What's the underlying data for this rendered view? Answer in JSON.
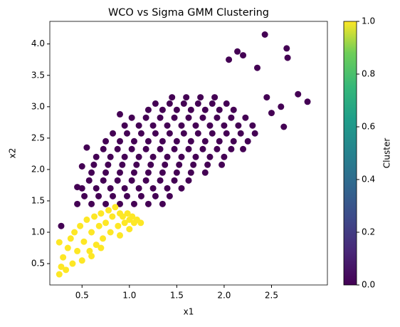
{
  "chart_data": {
    "type": "scatter",
    "title": "WCO vs Sigma GMM Clustering",
    "x_label": "x1",
    "y_label": "x2",
    "xlim": [
      0.16,
      3.09
    ],
    "ylim": [
      0.16,
      4.36
    ],
    "xticks": [
      0.5,
      {
        "value": 1.0,
        "label": "1.0"
      },
      1.5,
      {
        "value": 2.0,
        "label": "2.0"
      },
      2.5
    ],
    "yticks": [
      0.5,
      {
        "value": 1.0,
        "label": "1.0"
      },
      1.5,
      {
        "value": 2.0,
        "label": "2.0"
      },
      2.5,
      {
        "value": 3.0,
        "label": "3.0"
      },
      3.5,
      {
        "value": 4.0,
        "label": "4.0"
      }
    ],
    "colorbar": {
      "label": "Cluster",
      "lim": [
        0,
        1
      ],
      "ticks": [
        {
          "value": 0,
          "label": "0.0"
        },
        0.2,
        0.4,
        0.6,
        0.8,
        {
          "value": 1,
          "label": "1.0"
        }
      ]
    },
    "series": [
      {
        "color": "#440154",
        "x": [
          2.43,
          2.66,
          2.67,
          2.2,
          2.14,
          2.05,
          2.35,
          2.78,
          2.88,
          2.6,
          2.63,
          2.45,
          2.5,
          0.28,
          0.9,
          0.45,
          0.5,
          0.55,
          0.45,
          0.6,
          0.75,
          0.9,
          1.05,
          1.2,
          1.35,
          0.525,
          0.675,
          0.825,
          0.975,
          1.125,
          1.275,
          1.425,
          0.5,
          0.65,
          0.8,
          0.95,
          1.1,
          1.25,
          1.4,
          1.55,
          0.575,
          0.725,
          0.875,
          1.025,
          1.175,
          1.325,
          1.475,
          1.625,
          0.6,
          0.75,
          0.9,
          1.05,
          1.2,
          1.35,
          1.5,
          1.65,
          1.8,
          0.625,
          0.775,
          0.925,
          1.075,
          1.225,
          1.375,
          1.525,
          1.675,
          1.825,
          1.975,
          0.65,
          0.8,
          0.95,
          1.1,
          1.25,
          1.4,
          1.55,
          1.7,
          1.85,
          2.0,
          0.725,
          0.875,
          1.025,
          1.175,
          1.325,
          1.475,
          1.625,
          1.775,
          1.925,
          2.075,
          2.2,
          0.75,
          0.9,
          1.05,
          1.2,
          1.35,
          1.5,
          1.65,
          1.8,
          1.95,
          2.1,
          2.25,
          0.825,
          0.975,
          1.125,
          1.275,
          1.425,
          1.575,
          1.725,
          1.875,
          2.025,
          2.175,
          2.325,
          0.95,
          1.1,
          1.25,
          1.4,
          1.55,
          1.7,
          1.85,
          2.0,
          2.15,
          2.3,
          1.025,
          1.175,
          1.325,
          1.475,
          1.625,
          1.775,
          1.925,
          2.075,
          2.225,
          1.2,
          1.35,
          1.5,
          1.65,
          1.8,
          1.95,
          2.1,
          1.275,
          1.425,
          1.575,
          1.725,
          1.875,
          2.025,
          1.45,
          1.6,
          1.75,
          1.9
        ],
        "y": [
          4.15,
          3.93,
          3.78,
          3.82,
          3.88,
          3.75,
          3.62,
          3.2,
          3.08,
          3.0,
          2.68,
          3.15,
          2.9,
          1.1,
          2.88,
          1.72,
          2.05,
          2.35,
          1.45,
          1.45,
          1.45,
          1.45,
          1.45,
          1.45,
          1.45,
          1.575,
          1.575,
          1.575,
          1.575,
          1.575,
          1.575,
          1.575,
          1.7,
          1.7,
          1.7,
          1.7,
          1.7,
          1.7,
          1.7,
          1.7,
          1.825,
          1.825,
          1.825,
          1.825,
          1.825,
          1.825,
          1.825,
          1.825,
          1.95,
          1.95,
          1.95,
          1.95,
          1.95,
          1.95,
          1.95,
          1.95,
          1.95,
          2.075,
          2.075,
          2.075,
          2.075,
          2.075,
          2.075,
          2.075,
          2.075,
          2.075,
          2.075,
          2.2,
          2.2,
          2.2,
          2.2,
          2.2,
          2.2,
          2.2,
          2.2,
          2.2,
          2.2,
          2.325,
          2.325,
          2.325,
          2.325,
          2.325,
          2.325,
          2.325,
          2.325,
          2.325,
          2.325,
          2.325,
          2.45,
          2.45,
          2.45,
          2.45,
          2.45,
          2.45,
          2.45,
          2.45,
          2.45,
          2.45,
          2.45,
          2.575,
          2.575,
          2.575,
          2.575,
          2.575,
          2.575,
          2.575,
          2.575,
          2.575,
          2.575,
          2.575,
          2.7,
          2.7,
          2.7,
          2.7,
          2.7,
          2.7,
          2.7,
          2.7,
          2.7,
          2.7,
          2.825,
          2.825,
          2.825,
          2.825,
          2.825,
          2.825,
          2.825,
          2.825,
          2.825,
          2.95,
          2.95,
          2.95,
          2.95,
          2.95,
          2.95,
          2.95,
          3.05,
          3.05,
          3.05,
          3.05,
          3.05,
          3.05,
          3.15,
          3.15,
          3.15,
          3.15
        ]
      },
      {
        "color": "#fde725",
        "x": [
          0.26,
          0.28,
          0.26,
          0.3,
          0.33,
          0.35,
          0.38,
          0.4,
          0.42,
          0.45,
          0.48,
          0.5,
          0.52,
          0.55,
          0.58,
          0.6,
          0.63,
          0.65,
          0.68,
          0.7,
          0.72,
          0.75,
          0.78,
          0.8,
          0.82,
          0.85,
          0.88,
          0.9,
          0.93,
          0.95,
          0.98,
          1.0,
          1.03,
          1.05,
          1.08,
          1.12,
          0.6,
          0.9,
          0.7,
          1.0
        ],
        "y": [
          0.33,
          0.45,
          0.84,
          0.6,
          0.4,
          0.75,
          0.9,
          0.5,
          1.0,
          0.7,
          1.1,
          0.55,
          0.85,
          1.2,
          0.7,
          1.0,
          1.25,
          0.8,
          1.1,
          1.3,
          0.9,
          1.15,
          1.35,
          1.0,
          1.25,
          1.4,
          1.1,
          1.3,
          1.25,
          1.15,
          1.3,
          1.2,
          1.25,
          1.15,
          1.2,
          1.15,
          0.62,
          0.95,
          0.75,
          1.05
        ]
      }
    ]
  }
}
